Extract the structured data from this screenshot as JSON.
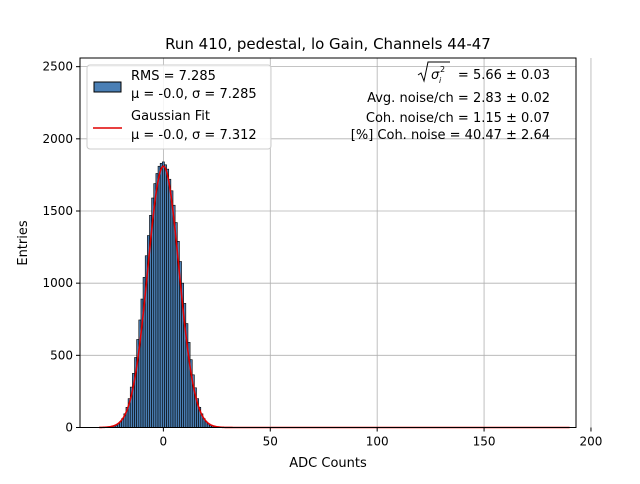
{
  "chart_data": {
    "type": "bar",
    "title": "Run 410, pedestal, lo Gain, Channels 44-47",
    "xlabel": "ADC Counts",
    "ylabel": "Entries",
    "xlim": [
      -39,
      193
    ],
    "ylim": [
      0,
      2560
    ],
    "xticks": [
      0,
      50,
      100,
      150,
      200
    ],
    "yticks": [
      0,
      500,
      1000,
      1500,
      2000,
      2500
    ],
    "grid": true,
    "legend_position": "top-left",
    "histogram": {
      "name": "RMS = 7.285",
      "stats": "μ = -0.0, σ = 7.285",
      "color": "#4a7fb5",
      "edge_color": "#000000",
      "bin_width": 1,
      "bin_centers": [
        -25,
        -24,
        -23,
        -22,
        -21,
        -20,
        -19,
        -18,
        -17,
        -16,
        -15,
        -14,
        -13,
        -12,
        -11,
        -10,
        -9,
        -8,
        -7,
        -6,
        -5,
        -4,
        -3,
        -2,
        -1,
        0,
        1,
        2,
        3,
        4,
        5,
        6,
        7,
        8,
        9,
        10,
        11,
        12,
        13,
        14,
        15,
        16,
        17,
        18,
        19,
        20,
        21,
        22,
        23,
        24,
        25
      ],
      "counts": [
        3,
        5,
        9,
        15,
        25,
        40,
        62,
        95,
        140,
        200,
        280,
        375,
        485,
        610,
        745,
        890,
        1040,
        1190,
        1330,
        1470,
        1590,
        1690,
        1760,
        1810,
        1830,
        1840,
        1820,
        1790,
        1720,
        1640,
        1540,
        1420,
        1290,
        1150,
        1000,
        860,
        720,
        590,
        470,
        365,
        275,
        200,
        140,
        95,
        62,
        40,
        25,
        15,
        9,
        5,
        3
      ]
    },
    "series": [
      {
        "name": "Gaussian Fit",
        "stats": "μ = -0.0, σ = 7.312",
        "color": "#e00000",
        "mu": 0.0,
        "sigma": 7.312,
        "amplitude": 1810,
        "x_range": [
          -30,
          190
        ]
      }
    ],
    "annotations": {
      "sigma_label_value": "= 5.66 ± 0.03",
      "avg_noise": "Avg. noise/ch = 2.83 ± 0.02",
      "coh_noise": "Coh. noise/ch = 1.15 ± 0.07",
      "coh_noise_pct": "[%] Coh. noise = 40.47 ± 2.64"
    }
  }
}
